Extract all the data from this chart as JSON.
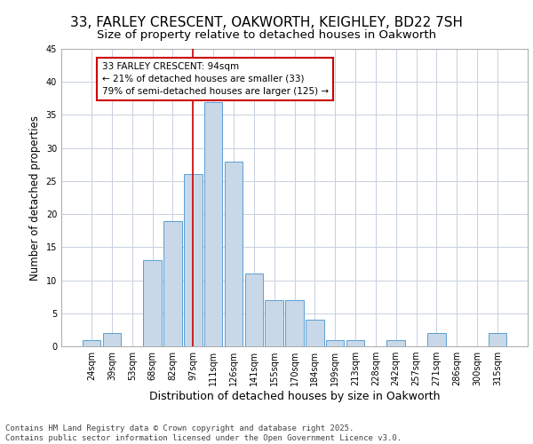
{
  "title": "33, FARLEY CRESCENT, OAKWORTH, KEIGHLEY, BD22 7SH",
  "subtitle": "Size of property relative to detached houses in Oakworth",
  "xlabel": "Distribution of detached houses by size in Oakworth",
  "ylabel": "Number of detached properties",
  "categories": [
    "24sqm",
    "39sqm",
    "53sqm",
    "68sqm",
    "82sqm",
    "97sqm",
    "111sqm",
    "126sqm",
    "141sqm",
    "155sqm",
    "170sqm",
    "184sqm",
    "199sqm",
    "213sqm",
    "228sqm",
    "242sqm",
    "257sqm",
    "271sqm",
    "286sqm",
    "300sqm",
    "315sqm"
  ],
  "values": [
    1,
    2,
    0,
    13,
    19,
    26,
    37,
    28,
    11,
    7,
    7,
    4,
    1,
    1,
    0,
    1,
    0,
    2,
    0,
    0,
    2
  ],
  "bar_color": "#c8d8e8",
  "bar_edge_color": "#5a9fd4",
  "background_color": "#ffffff",
  "grid_color": "#c8d0e0",
  "annotation_line1": "33 FARLEY CRESCENT: 94sqm",
  "annotation_line2": "← 21% of detached houses are smaller (33)",
  "annotation_line3": "79% of semi-detached houses are larger (125) →",
  "vline_x_index": 5,
  "vline_color": "#cc0000",
  "annotation_box_color": "#cc0000",
  "ylim": [
    0,
    45
  ],
  "yticks": [
    0,
    5,
    10,
    15,
    20,
    25,
    30,
    35,
    40,
    45
  ],
  "footer_line1": "Contains HM Land Registry data © Crown copyright and database right 2025.",
  "footer_line2": "Contains public sector information licensed under the Open Government Licence v3.0.",
  "title_fontsize": 11,
  "subtitle_fontsize": 9.5,
  "xlabel_fontsize": 9,
  "ylabel_fontsize": 8.5,
  "tick_fontsize": 7,
  "annotation_fontsize": 7.5,
  "footer_fontsize": 6.5
}
